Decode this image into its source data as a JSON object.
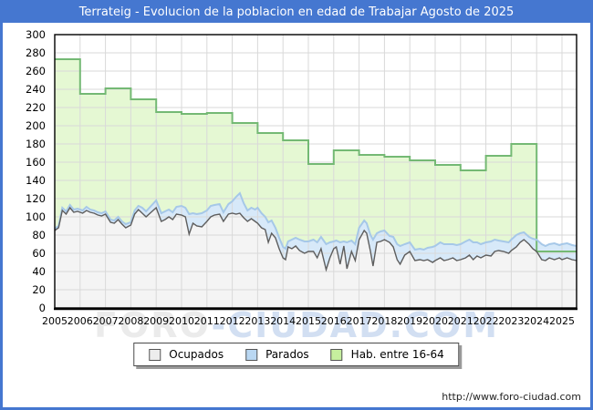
{
  "title": "Terrateig - Evolucion de la poblacion en edad de Trabajar Agosto de 2025",
  "watermark": {
    "part1": "FORO",
    "part2": "-CIUDAD.COM"
  },
  "footer_url": "http://www.foro-ciudad.com",
  "colors": {
    "frame_blue": "#4577d0",
    "grid": "#d9d9d9",
    "hab_fill": "#e5f8d3",
    "hab_line": "#74b974",
    "parados_fill": "#d7e9f9",
    "parados_line": "#a6c8e8",
    "ocupados_fill": "#f4f4f4",
    "ocupados_line": "#5e5e5e",
    "axis": "#000000",
    "legend_swatch_ocupados": "#ededed",
    "legend_swatch_parados": "#b9d7f2",
    "legend_swatch_hab": "#c6ef9e"
  },
  "legend": [
    {
      "label": "Ocupados"
    },
    {
      "label": "Parados"
    },
    {
      "label": "Hab. entre 16-64"
    }
  ],
  "chart_data": {
    "type": "area",
    "title": "Terrateig - Evolucion de la poblacion en edad de Trabajar Agosto de 2025",
    "xlabel": "",
    "ylabel": "",
    "ylim": [
      0,
      300
    ],
    "y_tick_step": 20,
    "x_ticks": [
      2005,
      2006,
      2007,
      2008,
      2009,
      2010,
      2011,
      2012,
      2013,
      2014,
      2015,
      2016,
      2017,
      2018,
      2019,
      2020,
      2021,
      2022,
      2023,
      2024,
      2025
    ],
    "x_end": 2025.75,
    "grid": true,
    "legend_position": "bottom",
    "note": "Ocupados and Parados are stacked monthly areas; parados_top = ocupados + parados. Hab. entre 16-64 is an annual step series drawn behind.",
    "series": {
      "hab_16_64": {
        "name": "Hab. entre 16-64",
        "style": "step",
        "years": [
          2005,
          2006,
          2007,
          2008,
          2009,
          2010,
          2011,
          2012,
          2013,
          2014,
          2015,
          2016,
          2017,
          2018,
          2019,
          2020,
          2021,
          2022,
          2023,
          2024,
          2025
        ],
        "values": [
          273,
          235,
          241,
          229,
          215,
          213,
          214,
          203,
          192,
          184,
          158,
          173,
          168,
          166,
          162,
          157,
          151,
          167,
          180,
          62,
          62
        ]
      },
      "ocupados": {
        "name": "Ocupados",
        "style": "line",
        "points": [
          [
            2005.0,
            85
          ],
          [
            2005.15,
            88
          ],
          [
            2005.3,
            107
          ],
          [
            2005.45,
            103
          ],
          [
            2005.6,
            110
          ],
          [
            2005.75,
            105
          ],
          [
            2005.9,
            106
          ],
          [
            2006.1,
            104
          ],
          [
            2006.25,
            107
          ],
          [
            2006.4,
            105
          ],
          [
            2006.55,
            104
          ],
          [
            2006.7,
            102
          ],
          [
            2006.85,
            101
          ],
          [
            2007.0,
            103
          ],
          [
            2007.2,
            94
          ],
          [
            2007.35,
            93
          ],
          [
            2007.5,
            97
          ],
          [
            2007.65,
            92
          ],
          [
            2007.8,
            88
          ],
          [
            2008.0,
            91
          ],
          [
            2008.15,
            103
          ],
          [
            2008.3,
            108
          ],
          [
            2008.45,
            104
          ],
          [
            2008.6,
            100
          ],
          [
            2008.8,
            105
          ],
          [
            2009.0,
            110
          ],
          [
            2009.2,
            95
          ],
          [
            2009.35,
            97
          ],
          [
            2009.5,
            100
          ],
          [
            2009.65,
            97
          ],
          [
            2009.8,
            103
          ],
          [
            2010.0,
            102
          ],
          [
            2010.15,
            100
          ],
          [
            2010.3,
            81
          ],
          [
            2010.45,
            93
          ],
          [
            2010.6,
            90
          ],
          [
            2010.8,
            89
          ],
          [
            2011.0,
            95
          ],
          [
            2011.15,
            100
          ],
          [
            2011.3,
            102
          ],
          [
            2011.5,
            103
          ],
          [
            2011.65,
            95
          ],
          [
            2011.85,
            103
          ],
          [
            2012.0,
            104
          ],
          [
            2012.15,
            103
          ],
          [
            2012.3,
            104
          ],
          [
            2012.45,
            99
          ],
          [
            2012.6,
            95
          ],
          [
            2012.75,
            98
          ],
          [
            2012.9,
            95
          ],
          [
            2013.0,
            93
          ],
          [
            2013.15,
            88
          ],
          [
            2013.3,
            86
          ],
          [
            2013.42,
            72
          ],
          [
            2013.55,
            82
          ],
          [
            2013.7,
            77
          ],
          [
            2013.85,
            65
          ],
          [
            2014.0,
            55
          ],
          [
            2014.1,
            53
          ],
          [
            2014.2,
            67
          ],
          [
            2014.35,
            65
          ],
          [
            2014.5,
            68
          ],
          [
            2014.65,
            63
          ],
          [
            2014.85,
            60
          ],
          [
            2015.0,
            62
          ],
          [
            2015.2,
            62
          ],
          [
            2015.35,
            55
          ],
          [
            2015.5,
            65
          ],
          [
            2015.7,
            42
          ],
          [
            2015.85,
            55
          ],
          [
            2016.0,
            65
          ],
          [
            2016.1,
            67
          ],
          [
            2016.25,
            48
          ],
          [
            2016.4,
            68
          ],
          [
            2016.52,
            43
          ],
          [
            2016.7,
            62
          ],
          [
            2016.85,
            52
          ],
          [
            2017.0,
            75
          ],
          [
            2017.2,
            85
          ],
          [
            2017.3,
            82
          ],
          [
            2017.45,
            62
          ],
          [
            2017.55,
            46
          ],
          [
            2017.7,
            72
          ],
          [
            2017.85,
            73
          ],
          [
            2018.0,
            75
          ],
          [
            2018.2,
            72
          ],
          [
            2018.35,
            67
          ],
          [
            2018.5,
            53
          ],
          [
            2018.62,
            48
          ],
          [
            2018.8,
            58
          ],
          [
            2019.0,
            62
          ],
          [
            2019.2,
            52
          ],
          [
            2019.4,
            53
          ],
          [
            2019.55,
            52
          ],
          [
            2019.7,
            53
          ],
          [
            2019.9,
            50
          ],
          [
            2020.0,
            52
          ],
          [
            2020.2,
            55
          ],
          [
            2020.35,
            52
          ],
          [
            2020.5,
            53
          ],
          [
            2020.7,
            55
          ],
          [
            2020.85,
            52
          ],
          [
            2021.0,
            53
          ],
          [
            2021.2,
            55
          ],
          [
            2021.35,
            58
          ],
          [
            2021.5,
            53
          ],
          [
            2021.65,
            57
          ],
          [
            2021.8,
            55
          ],
          [
            2022.0,
            58
          ],
          [
            2022.2,
            57
          ],
          [
            2022.35,
            62
          ],
          [
            2022.5,
            63
          ],
          [
            2022.7,
            62
          ],
          [
            2022.9,
            60
          ],
          [
            2023.0,
            63
          ],
          [
            2023.2,
            67
          ],
          [
            2023.35,
            72
          ],
          [
            2023.5,
            75
          ],
          [
            2023.7,
            70
          ],
          [
            2023.85,
            65
          ],
          [
            2024.0,
            62
          ],
          [
            2024.2,
            53
          ],
          [
            2024.35,
            52
          ],
          [
            2024.5,
            55
          ],
          [
            2024.7,
            53
          ],
          [
            2024.9,
            55
          ],
          [
            2025.0,
            53
          ],
          [
            2025.2,
            55
          ],
          [
            2025.4,
            53
          ],
          [
            2025.58,
            52
          ]
        ]
      },
      "parados_top": {
        "name": "Parados",
        "style": "line",
        "points": [
          [
            2005.0,
            87
          ],
          [
            2005.15,
            90
          ],
          [
            2005.3,
            110
          ],
          [
            2005.45,
            106
          ],
          [
            2005.6,
            113
          ],
          [
            2005.75,
            108
          ],
          [
            2005.9,
            109
          ],
          [
            2006.1,
            107
          ],
          [
            2006.25,
            111
          ],
          [
            2006.4,
            108
          ],
          [
            2006.55,
            107
          ],
          [
            2006.7,
            105
          ],
          [
            2006.85,
            104
          ],
          [
            2007.0,
            106
          ],
          [
            2007.2,
            97
          ],
          [
            2007.35,
            96
          ],
          [
            2007.5,
            100
          ],
          [
            2007.65,
            95
          ],
          [
            2007.8,
            92
          ],
          [
            2008.0,
            94
          ],
          [
            2008.15,
            107
          ],
          [
            2008.3,
            112
          ],
          [
            2008.45,
            110
          ],
          [
            2008.6,
            106
          ],
          [
            2008.8,
            112
          ],
          [
            2009.0,
            118
          ],
          [
            2009.2,
            104
          ],
          [
            2009.35,
            106
          ],
          [
            2009.5,
            108
          ],
          [
            2009.65,
            105
          ],
          [
            2009.8,
            111
          ],
          [
            2010.0,
            112
          ],
          [
            2010.15,
            110
          ],
          [
            2010.3,
            103
          ],
          [
            2010.45,
            104
          ],
          [
            2010.6,
            103
          ],
          [
            2010.8,
            104
          ],
          [
            2011.0,
            107
          ],
          [
            2011.15,
            112
          ],
          [
            2011.3,
            113
          ],
          [
            2011.5,
            114
          ],
          [
            2011.65,
            105
          ],
          [
            2011.85,
            114
          ],
          [
            2012.0,
            117
          ],
          [
            2012.15,
            122
          ],
          [
            2012.3,
            126
          ],
          [
            2012.45,
            115
          ],
          [
            2012.6,
            107
          ],
          [
            2012.75,
            110
          ],
          [
            2012.9,
            108
          ],
          [
            2013.0,
            110
          ],
          [
            2013.15,
            104
          ],
          [
            2013.3,
            100
          ],
          [
            2013.42,
            94
          ],
          [
            2013.55,
            96
          ],
          [
            2013.7,
            88
          ],
          [
            2013.85,
            77
          ],
          [
            2014.0,
            67
          ],
          [
            2014.1,
            65
          ],
          [
            2014.2,
            73
          ],
          [
            2014.35,
            75
          ],
          [
            2014.5,
            77
          ],
          [
            2014.65,
            75
          ],
          [
            2014.85,
            73
          ],
          [
            2015.0,
            73
          ],
          [
            2015.2,
            75
          ],
          [
            2015.35,
            72
          ],
          [
            2015.5,
            78
          ],
          [
            2015.7,
            70
          ],
          [
            2015.85,
            72
          ],
          [
            2016.0,
            73
          ],
          [
            2016.1,
            74
          ],
          [
            2016.25,
            72
          ],
          [
            2016.4,
            73
          ],
          [
            2016.52,
            72
          ],
          [
            2016.7,
            74
          ],
          [
            2016.85,
            70
          ],
          [
            2017.0,
            88
          ],
          [
            2017.2,
            96
          ],
          [
            2017.3,
            93
          ],
          [
            2017.45,
            80
          ],
          [
            2017.55,
            75
          ],
          [
            2017.7,
            82
          ],
          [
            2017.85,
            84
          ],
          [
            2018.0,
            85
          ],
          [
            2018.2,
            79
          ],
          [
            2018.35,
            78
          ],
          [
            2018.5,
            70
          ],
          [
            2018.62,
            68
          ],
          [
            2018.8,
            70
          ],
          [
            2019.0,
            72
          ],
          [
            2019.2,
            64
          ],
          [
            2019.4,
            65
          ],
          [
            2019.55,
            64
          ],
          [
            2019.7,
            66
          ],
          [
            2019.9,
            67
          ],
          [
            2020.0,
            68
          ],
          [
            2020.2,
            72
          ],
          [
            2020.35,
            70
          ],
          [
            2020.5,
            70
          ],
          [
            2020.7,
            70
          ],
          [
            2020.85,
            69
          ],
          [
            2021.0,
            70
          ],
          [
            2021.2,
            73
          ],
          [
            2021.35,
            75
          ],
          [
            2021.5,
            72
          ],
          [
            2021.65,
            72
          ],
          [
            2021.8,
            70
          ],
          [
            2022.0,
            72
          ],
          [
            2022.2,
            73
          ],
          [
            2022.35,
            75
          ],
          [
            2022.5,
            74
          ],
          [
            2022.7,
            73
          ],
          [
            2022.9,
            72
          ],
          [
            2023.0,
            75
          ],
          [
            2023.2,
            80
          ],
          [
            2023.35,
            82
          ],
          [
            2023.5,
            83
          ],
          [
            2023.7,
            78
          ],
          [
            2023.85,
            76
          ],
          [
            2024.0,
            75
          ],
          [
            2024.2,
            70
          ],
          [
            2024.35,
            68
          ],
          [
            2024.5,
            70
          ],
          [
            2024.7,
            71
          ],
          [
            2024.9,
            69
          ],
          [
            2025.0,
            70
          ],
          [
            2025.2,
            71
          ],
          [
            2025.4,
            69
          ],
          [
            2025.58,
            68
          ]
        ]
      }
    }
  }
}
